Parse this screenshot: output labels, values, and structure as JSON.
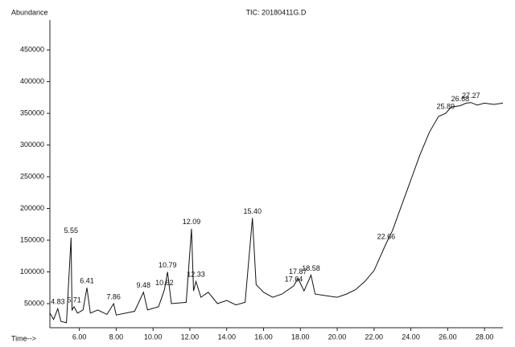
{
  "chart_data": {
    "type": "line",
    "title": "TIC: 20180411G.D",
    "y_label": "Abundance",
    "x_label": "Time-->",
    "xlim": [
      4.4,
      29.0
    ],
    "ylim": [
      12000,
      497000
    ],
    "xticks": [
      {
        "value": 6,
        "label": "6.00"
      },
      {
        "value": 8,
        "label": "8.00"
      },
      {
        "value": 10,
        "label": "10.00"
      },
      {
        "value": 12,
        "label": "12.00"
      },
      {
        "value": 14,
        "label": "14.00"
      },
      {
        "value": 16,
        "label": "16.00"
      },
      {
        "value": 18,
        "label": "18.00"
      },
      {
        "value": 20,
        "label": "20.00"
      },
      {
        "value": 22,
        "label": "22.00"
      },
      {
        "value": 24,
        "label": "24.00"
      },
      {
        "value": 26,
        "label": "26.00"
      },
      {
        "value": 28,
        "label": "28.00"
      }
    ],
    "yticks": [
      50000,
      100000,
      150000,
      200000,
      250000,
      300000,
      350000,
      400000,
      450000
    ],
    "x": [
      4.4,
      4.6,
      4.83,
      5.0,
      5.3,
      5.55,
      5.6,
      5.71,
      5.9,
      6.2,
      6.41,
      6.6,
      7.0,
      7.5,
      7.86,
      8.0,
      9.0,
      9.48,
      9.7,
      10.3,
      10.62,
      10.79,
      11.0,
      11.8,
      12.09,
      12.2,
      12.33,
      12.6,
      13.0,
      13.5,
      14.0,
      14.5,
      15.0,
      15.4,
      15.6,
      16.0,
      16.5,
      17.0,
      17.64,
      17.87,
      18.2,
      18.58,
      18.8,
      19.5,
      20.0,
      20.5,
      21.0,
      21.5,
      22.0,
      22.66,
      23.0,
      23.5,
      24.0,
      24.5,
      25.0,
      25.5,
      25.89,
      26.2,
      26.68,
      27.0,
      27.27,
      27.6,
      28.0,
      28.5,
      29.0
    ],
    "series": [
      {
        "color": "#111111",
        "values": [
          35000,
          25000,
          42000,
          22000,
          20000,
          154000,
          40000,
          45000,
          35000,
          40000,
          75000,
          35000,
          40000,
          33000,
          50000,
          32000,
          38000,
          68000,
          40000,
          45000,
          72000,
          100000,
          50000,
          52000,
          168000,
          70000,
          85000,
          60000,
          68000,
          50000,
          55000,
          48000,
          52000,
          185000,
          80000,
          68000,
          60000,
          65000,
          78000,
          90000,
          70000,
          95000,
          65000,
          62000,
          60000,
          65000,
          72000,
          85000,
          102000,
          145000,
          165000,
          205000,
          245000,
          285000,
          320000,
          345000,
          350000,
          360000,
          362000,
          366000,
          367000,
          363000,
          366000,
          364000,
          366000
        ]
      }
    ],
    "peak_labels": [
      4.83,
      5.55,
      5.71,
      6.41,
      7.86,
      9.48,
      10.62,
      10.79,
      12.09,
      12.33,
      {
        "value": 15.4,
        "label": "15.40"
      },
      17.64,
      17.87,
      18.58,
      22.66,
      25.89,
      26.68,
      27.27
    ]
  }
}
